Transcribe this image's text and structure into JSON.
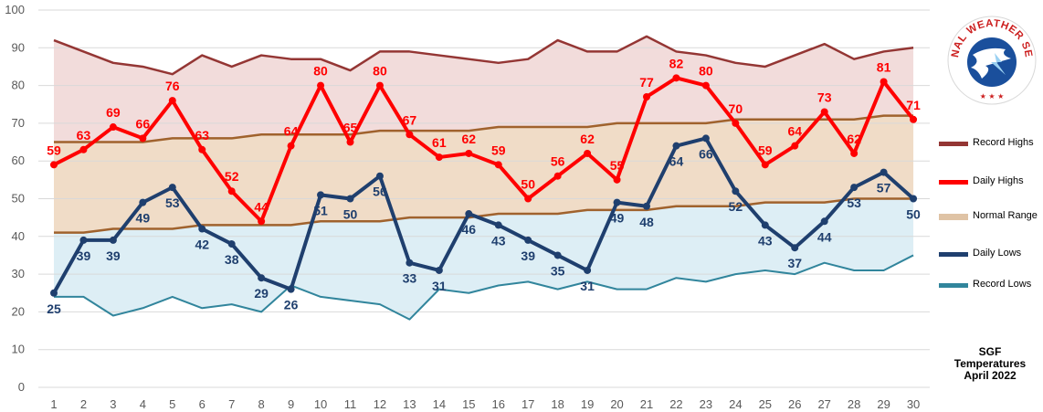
{
  "chart_data": {
    "type": "line",
    "x": [
      1,
      2,
      3,
      4,
      5,
      6,
      7,
      8,
      9,
      10,
      11,
      12,
      13,
      14,
      15,
      16,
      17,
      18,
      19,
      20,
      21,
      22,
      23,
      24,
      25,
      26,
      27,
      28,
      29,
      30
    ],
    "ylim": [
      0,
      100
    ],
    "yticks": [
      "0",
      "10",
      "20",
      "30",
      "40",
      "50",
      "60",
      "70",
      "80",
      "90",
      "100"
    ],
    "xticks": [
      "1",
      "2",
      "3",
      "4",
      "5",
      "6",
      "7",
      "8",
      "9",
      "10",
      "11",
      "12",
      "13",
      "14",
      "15",
      "16",
      "17",
      "18",
      "19",
      "20",
      "21",
      "22",
      "23",
      "24",
      "25",
      "26",
      "27",
      "28",
      "29",
      "30"
    ],
    "grid": true,
    "legend_position": "right",
    "series": [
      {
        "name": "Record Highs",
        "color": "#943634",
        "values": [
          92,
          89,
          86,
          85,
          83,
          88,
          85,
          88,
          87,
          87,
          84,
          89,
          89,
          88,
          87,
          86,
          87,
          92,
          89,
          89,
          93,
          89,
          88,
          86,
          85,
          88,
          91,
          87,
          89,
          90
        ]
      },
      {
        "name": "Daily Highs",
        "color": "#ff0000",
        "values": [
          59,
          63,
          69,
          66,
          76,
          63,
          52,
          44,
          64,
          80,
          65,
          80,
          67,
          61,
          62,
          59,
          50,
          56,
          62,
          55,
          77,
          82,
          80,
          70,
          59,
          64,
          73,
          62,
          81,
          71
        ]
      },
      {
        "name": "Normal Range",
        "color": "#dfc3a5",
        "upper": [
          65,
          65,
          65,
          65,
          66,
          66,
          66,
          67,
          67,
          67,
          67,
          68,
          68,
          68,
          68,
          69,
          69,
          69,
          69,
          70,
          70,
          70,
          70,
          71,
          71,
          71,
          71,
          71,
          72,
          72
        ],
        "lower": [
          41,
          41,
          42,
          42,
          42,
          43,
          43,
          43,
          43,
          44,
          44,
          44,
          45,
          45,
          45,
          46,
          46,
          46,
          47,
          47,
          47,
          48,
          48,
          48,
          49,
          49,
          49,
          50,
          50,
          50
        ]
      },
      {
        "name": "Daily Lows",
        "color": "#1f3f6e",
        "values": [
          25,
          39,
          39,
          49,
          53,
          42,
          38,
          29,
          26,
          51,
          50,
          56,
          33,
          31,
          46,
          43,
          39,
          35,
          31,
          49,
          48,
          64,
          66,
          52,
          43,
          37,
          44,
          53,
          57,
          50
        ]
      },
      {
        "name": "Record Lows",
        "color": "#31859c",
        "values": [
          24,
          24,
          19,
          21,
          24,
          21,
          22,
          20,
          27,
          24,
          23,
          22,
          18,
          26,
          25,
          27,
          28,
          26,
          28,
          26,
          26,
          29,
          28,
          30,
          31,
          30,
          33,
          31,
          31,
          35
        ]
      }
    ],
    "annotation": "SGF\nTemperatures\nApril 2022"
  },
  "legend": {
    "items": [
      {
        "label": "Record Highs",
        "color": "#943634"
      },
      {
        "label": "Daily Highs",
        "color": "#ff0000"
      },
      {
        "label": "Normal Range",
        "color": "#dfc3a5"
      },
      {
        "label": "Daily Lows",
        "color": "#1f3f6e"
      },
      {
        "label": "Record Lows",
        "color": "#31859c"
      }
    ]
  },
  "caption": {
    "line1": "SGF",
    "line2": "Temperatures",
    "line3": "April 2022"
  },
  "logo": {
    "text": "NATIONAL WEATHER SERVICE",
    "icon": "nws-logo-icon"
  },
  "colors": {
    "high_band": "#f2dcdb",
    "normal_band": "#f0dcc7",
    "low_band": "#ddeef5",
    "normal_line": "#a0622d"
  }
}
